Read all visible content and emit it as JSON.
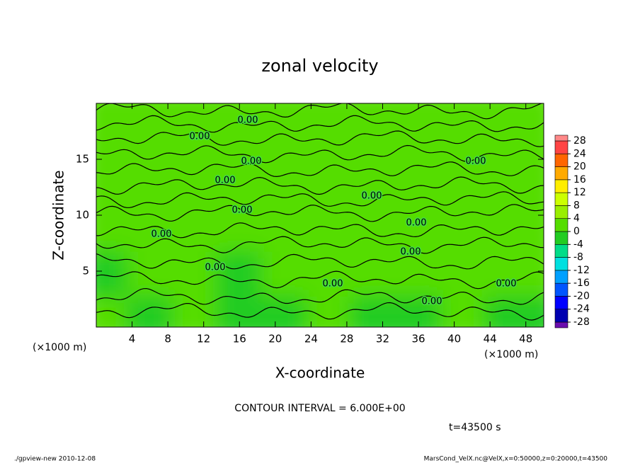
{
  "chart_data": {
    "type": "contour",
    "title": "zonal velocity",
    "xlabel": "X-coordinate",
    "ylabel": "Z-coordinate",
    "axis_unit": "(×1000 m)",
    "xlim": [
      0,
      50
    ],
    "xticks": [
      4,
      8,
      12,
      16,
      20,
      24,
      28,
      32,
      36,
      40,
      44,
      48
    ],
    "ylim": [
      0,
      20
    ],
    "yticks": [
      5,
      10,
      15
    ],
    "z": [
      [
        2,
        -3,
        1,
        -2,
        -4,
        1,
        -2,
        -3,
        3,
        -1
      ],
      [
        -1,
        1,
        2,
        -1,
        2,
        1,
        3,
        2,
        2,
        0
      ],
      [
        1,
        2,
        1,
        2,
        1,
        2,
        1,
        1,
        2,
        1
      ],
      [
        2,
        1,
        2,
        1,
        2,
        1,
        2,
        2,
        1,
        2
      ],
      [
        1,
        2,
        1,
        2,
        1,
        2,
        2,
        1,
        2,
        1
      ]
    ],
    "contour_level": {
      "value": 0,
      "label": "0.00"
    },
    "clim": [
      -32,
      32
    ],
    "colorbar_ticks": [
      28,
      24,
      20,
      16,
      12,
      8,
      4,
      0,
      -4,
      -8,
      -12,
      -16,
      -20,
      -24,
      -28
    ],
    "colors": [
      "#6a0dad",
      "#0000b0",
      "#0000ff",
      "#0055ff",
      "#00a0ff",
      "#00e0e0",
      "#00dd88",
      "#22cc22",
      "#55dd00",
      "#99ee00",
      "#ccff00",
      "#ffee00",
      "#ffaa00",
      "#ff6600",
      "#ff4444",
      "#ff8888"
    ],
    "contour_interval": "CONTOUR INTERVAL = 6.000E+00",
    "time_label": "t=43500 s",
    "footer_left": "./gpview-new   2010-12-08",
    "footer_right": "MarsCond_VelX.nc@VelX,x=0:50000,z=0:20000,t=43500"
  }
}
